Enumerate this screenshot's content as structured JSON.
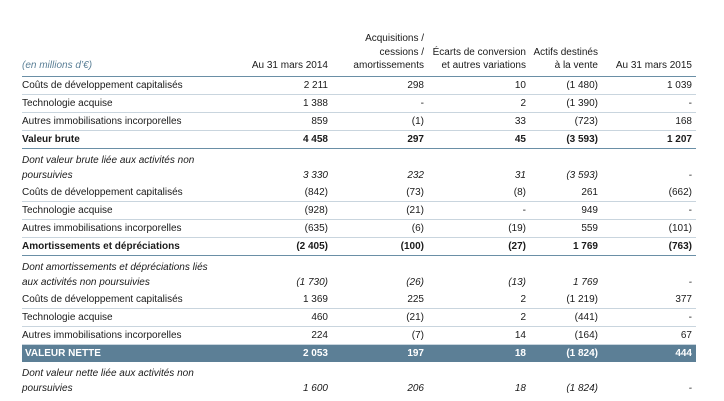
{
  "headers": [
    "(en millions d’€)",
    "Au 31 mars 2014",
    "Acquisitions / cessions / amortissements",
    "Écarts de conversion et autres variations",
    "Actifs destinés à la vente",
    "Au 31 mars 2015"
  ],
  "rows": [
    {
      "type": "normal",
      "cells": [
        "Coûts de développement capitalisés",
        "2 211",
        "298",
        "10",
        "(1 480)",
        "1 039"
      ]
    },
    {
      "type": "normal",
      "cells": [
        "Technologie acquise",
        "1 388",
        "-",
        "2",
        "(1 390)",
        "-"
      ]
    },
    {
      "type": "normal",
      "cells": [
        "Autres immobilisations incorporelles",
        "859",
        "(1)",
        "33",
        "(723)",
        "168"
      ]
    },
    {
      "type": "strong",
      "cells": [
        "Valeur brute",
        "4 458",
        "297",
        "45",
        "(3 593)",
        "1 207"
      ]
    },
    {
      "type": "italic",
      "cells": [
        "Dont valeur brute liée aux activités non poursuivies",
        "3 330",
        "232",
        "31",
        "(3 593)",
        "-"
      ]
    },
    {
      "type": "normal",
      "cells": [
        "Coûts de développement capitalisés",
        "(842)",
        "(73)",
        "(8)",
        "261",
        "(662)"
      ]
    },
    {
      "type": "normal",
      "cells": [
        "Technologie acquise",
        "(928)",
        "(21)",
        "-",
        "949",
        "-"
      ]
    },
    {
      "type": "normal",
      "cells": [
        "Autres immobilisations incorporelles",
        "(635)",
        "(6)",
        "(19)",
        "559",
        "(101)"
      ]
    },
    {
      "type": "strong",
      "cells": [
        "Amortissements et dépréciations",
        "(2 405)",
        "(100)",
        "(27)",
        "1 769",
        "(763)"
      ]
    },
    {
      "type": "italic",
      "cells": [
        "Dont amortissements et dépréciations liés aux activités non poursuivies",
        "(1 730)",
        "(26)",
        "(13)",
        "1 769",
        "-"
      ]
    },
    {
      "type": "normal",
      "cells": [
        "Coûts de développement capitalisés",
        "1 369",
        "225",
        "2",
        "(1 219)",
        "377"
      ]
    },
    {
      "type": "normal",
      "cells": [
        "Technologie acquise",
        "460",
        "(21)",
        "2",
        "(441)",
        "-"
      ]
    },
    {
      "type": "normal",
      "cells": [
        "Autres immobilisations incorporelles",
        "224",
        "(7)",
        "14",
        "(164)",
        "67"
      ]
    },
    {
      "type": "net",
      "cells": [
        "VALEUR NETTE",
        "2 053",
        "197",
        "18",
        "(1 824)",
        "444"
      ]
    },
    {
      "type": "italic",
      "cells": [
        "Dont valeur nette liée aux activités non poursuivies",
        "1 600",
        "206",
        "18",
        "(1 824)",
        "-"
      ]
    }
  ],
  "colors": {
    "rule": "#6a8fa6",
    "net_band": "#5c7f96",
    "unit_text": "#5a7f96"
  }
}
